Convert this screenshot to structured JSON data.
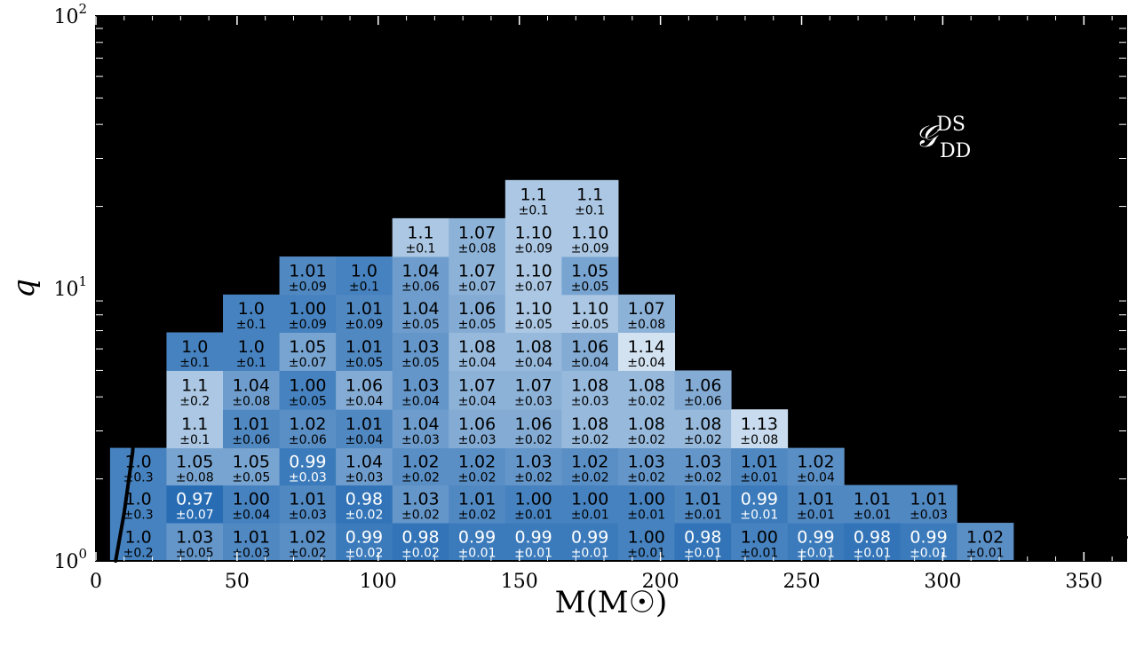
{
  "chart_data": {
    "type": "heatmap",
    "title": "",
    "xlabel": "M(M☉)",
    "ylabel": "q",
    "annotation": {
      "main": "𝒢",
      "sup": "DS",
      "sub": "DD"
    },
    "xlim": [
      0,
      365
    ],
    "ylim": [
      1,
      100
    ],
    "y_scale": "log",
    "x_ticks": [
      "0",
      "50",
      "100",
      "150",
      "200",
      "250",
      "300",
      "350"
    ],
    "y_ticks": [
      {
        "base": "10",
        "exp": "0"
      },
      {
        "base": "10",
        "exp": "1"
      },
      {
        "base": "10",
        "exp": "2"
      }
    ],
    "x_bin_edges": [
      5,
      25,
      45,
      65,
      85,
      105,
      125,
      145,
      165,
      185,
      205,
      225,
      245,
      265,
      285,
      305,
      325,
      345,
      365
    ],
    "y_bin_edges": [
      1,
      1.38,
      1.9,
      2.6,
      3.6,
      5.0,
      6.9,
      9.5,
      13.1,
      18.1,
      25.0,
      34.5,
      47.6
    ],
    "colors": {
      "background": "#000000",
      "cmap_low": "#1e66b0",
      "cmap_high": "#dde9f5"
    },
    "cells": [
      {
        "xi": 0,
        "yi": 0,
        "value": "1.0",
        "err": "±0.2"
      },
      {
        "xi": 1,
        "yi": 0,
        "value": "1.03",
        "err": "±0.05"
      },
      {
        "xi": 2,
        "yi": 0,
        "value": "1.01",
        "err": "±0.03"
      },
      {
        "xi": 3,
        "yi": 0,
        "value": "1.02",
        "err": "±0.02"
      },
      {
        "xi": 4,
        "yi": 0,
        "value": "0.99",
        "err": "±0.02"
      },
      {
        "xi": 5,
        "yi": 0,
        "value": "0.98",
        "err": "±0.02"
      },
      {
        "xi": 6,
        "yi": 0,
        "value": "0.99",
        "err": "±0.01"
      },
      {
        "xi": 7,
        "yi": 0,
        "value": "0.99",
        "err": "±0.01"
      },
      {
        "xi": 8,
        "yi": 0,
        "value": "0.99",
        "err": "±0.01"
      },
      {
        "xi": 9,
        "yi": 0,
        "value": "1.00",
        "err": "±0.01"
      },
      {
        "xi": 10,
        "yi": 0,
        "value": "0.98",
        "err": "±0.01"
      },
      {
        "xi": 11,
        "yi": 0,
        "value": "1.00",
        "err": "±0.01"
      },
      {
        "xi": 12,
        "yi": 0,
        "value": "0.99",
        "err": "±0.01"
      },
      {
        "xi": 13,
        "yi": 0,
        "value": "0.98",
        "err": "±0.01"
      },
      {
        "xi": 14,
        "yi": 0,
        "value": "0.99",
        "err": "±0.01"
      },
      {
        "xi": 15,
        "yi": 0,
        "value": "1.02",
        "err": "±0.01"
      },
      {
        "xi": 0,
        "yi": 1,
        "value": "1.0",
        "err": "±0.3"
      },
      {
        "xi": 1,
        "yi": 1,
        "value": "0.97",
        "err": "±0.07"
      },
      {
        "xi": 2,
        "yi": 1,
        "value": "1.00",
        "err": "±0.04"
      },
      {
        "xi": 3,
        "yi": 1,
        "value": "1.01",
        "err": "±0.03"
      },
      {
        "xi": 4,
        "yi": 1,
        "value": "0.98",
        "err": "±0.02"
      },
      {
        "xi": 5,
        "yi": 1,
        "value": "1.03",
        "err": "±0.02"
      },
      {
        "xi": 6,
        "yi": 1,
        "value": "1.01",
        "err": "±0.02"
      },
      {
        "xi": 7,
        "yi": 1,
        "value": "1.00",
        "err": "±0.01"
      },
      {
        "xi": 8,
        "yi": 1,
        "value": "1.00",
        "err": "±0.01"
      },
      {
        "xi": 9,
        "yi": 1,
        "value": "1.00",
        "err": "±0.01"
      },
      {
        "xi": 10,
        "yi": 1,
        "value": "1.01",
        "err": "±0.01"
      },
      {
        "xi": 11,
        "yi": 1,
        "value": "0.99",
        "err": "±0.01"
      },
      {
        "xi": 12,
        "yi": 1,
        "value": "1.01",
        "err": "±0.01"
      },
      {
        "xi": 13,
        "yi": 1,
        "value": "1.01",
        "err": "±0.01"
      },
      {
        "xi": 14,
        "yi": 1,
        "value": "1.01",
        "err": "±0.03"
      },
      {
        "xi": 0,
        "yi": 2,
        "value": "1.0",
        "err": "±0.3"
      },
      {
        "xi": 1,
        "yi": 2,
        "value": "1.05",
        "err": "±0.08"
      },
      {
        "xi": 2,
        "yi": 2,
        "value": "1.05",
        "err": "±0.05"
      },
      {
        "xi": 3,
        "yi": 2,
        "value": "0.99",
        "err": "±0.03"
      },
      {
        "xi": 4,
        "yi": 2,
        "value": "1.04",
        "err": "±0.03"
      },
      {
        "xi": 5,
        "yi": 2,
        "value": "1.02",
        "err": "±0.02"
      },
      {
        "xi": 6,
        "yi": 2,
        "value": "1.02",
        "err": "±0.02"
      },
      {
        "xi": 7,
        "yi": 2,
        "value": "1.03",
        "err": "±0.02"
      },
      {
        "xi": 8,
        "yi": 2,
        "value": "1.02",
        "err": "±0.02"
      },
      {
        "xi": 9,
        "yi": 2,
        "value": "1.03",
        "err": "±0.02"
      },
      {
        "xi": 10,
        "yi": 2,
        "value": "1.03",
        "err": "±0.02"
      },
      {
        "xi": 11,
        "yi": 2,
        "value": "1.01",
        "err": "±0.01"
      },
      {
        "xi": 12,
        "yi": 2,
        "value": "1.02",
        "err": "±0.04"
      },
      {
        "xi": 1,
        "yi": 3,
        "value": "1.1",
        "err": "±0.1"
      },
      {
        "xi": 2,
        "yi": 3,
        "value": "1.01",
        "err": "±0.06"
      },
      {
        "xi": 3,
        "yi": 3,
        "value": "1.02",
        "err": "±0.06"
      },
      {
        "xi": 4,
        "yi": 3,
        "value": "1.01",
        "err": "±0.04"
      },
      {
        "xi": 5,
        "yi": 3,
        "value": "1.04",
        "err": "±0.03"
      },
      {
        "xi": 6,
        "yi": 3,
        "value": "1.06",
        "err": "±0.03"
      },
      {
        "xi": 7,
        "yi": 3,
        "value": "1.06",
        "err": "±0.02"
      },
      {
        "xi": 8,
        "yi": 3,
        "value": "1.08",
        "err": "±0.02"
      },
      {
        "xi": 9,
        "yi": 3,
        "value": "1.08",
        "err": "±0.02"
      },
      {
        "xi": 10,
        "yi": 3,
        "value": "1.08",
        "err": "±0.02"
      },
      {
        "xi": 11,
        "yi": 3,
        "value": "1.13",
        "err": "±0.08"
      },
      {
        "xi": 1,
        "yi": 4,
        "value": "1.1",
        "err": "±0.2"
      },
      {
        "xi": 2,
        "yi": 4,
        "value": "1.04",
        "err": "±0.08"
      },
      {
        "xi": 3,
        "yi": 4,
        "value": "1.00",
        "err": "±0.05"
      },
      {
        "xi": 4,
        "yi": 4,
        "value": "1.06",
        "err": "±0.04"
      },
      {
        "xi": 5,
        "yi": 4,
        "value": "1.03",
        "err": "±0.04"
      },
      {
        "xi": 6,
        "yi": 4,
        "value": "1.07",
        "err": "±0.04"
      },
      {
        "xi": 7,
        "yi": 4,
        "value": "1.07",
        "err": "±0.03"
      },
      {
        "xi": 8,
        "yi": 4,
        "value": "1.08",
        "err": "±0.03"
      },
      {
        "xi": 9,
        "yi": 4,
        "value": "1.08",
        "err": "±0.02"
      },
      {
        "xi": 10,
        "yi": 4,
        "value": "1.06",
        "err": "±0.06"
      },
      {
        "xi": 1,
        "yi": 5,
        "value": "1.0",
        "err": "±0.1"
      },
      {
        "xi": 2,
        "yi": 5,
        "value": "1.0",
        "err": "±0.1"
      },
      {
        "xi": 3,
        "yi": 5,
        "value": "1.05",
        "err": "±0.07"
      },
      {
        "xi": 4,
        "yi": 5,
        "value": "1.01",
        "err": "±0.05"
      },
      {
        "xi": 5,
        "yi": 5,
        "value": "1.03",
        "err": "±0.05"
      },
      {
        "xi": 6,
        "yi": 5,
        "value": "1.08",
        "err": "±0.04"
      },
      {
        "xi": 7,
        "yi": 5,
        "value": "1.08",
        "err": "±0.04"
      },
      {
        "xi": 8,
        "yi": 5,
        "value": "1.06",
        "err": "±0.04"
      },
      {
        "xi": 9,
        "yi": 5,
        "value": "1.14",
        "err": "±0.04"
      },
      {
        "xi": 2,
        "yi": 6,
        "value": "1.0",
        "err": "±0.1"
      },
      {
        "xi": 3,
        "yi": 6,
        "value": "1.00",
        "err": "±0.09"
      },
      {
        "xi": 4,
        "yi": 6,
        "value": "1.01",
        "err": "±0.09"
      },
      {
        "xi": 5,
        "yi": 6,
        "value": "1.04",
        "err": "±0.05"
      },
      {
        "xi": 6,
        "yi": 6,
        "value": "1.06",
        "err": "±0.05"
      },
      {
        "xi": 7,
        "yi": 6,
        "value": "1.10",
        "err": "±0.05"
      },
      {
        "xi": 8,
        "yi": 6,
        "value": "1.10",
        "err": "±0.05"
      },
      {
        "xi": 9,
        "yi": 6,
        "value": "1.07",
        "err": "±0.08"
      },
      {
        "xi": 3,
        "yi": 7,
        "value": "1.01",
        "err": "±0.09"
      },
      {
        "xi": 4,
        "yi": 7,
        "value": "1.0",
        "err": "±0.1"
      },
      {
        "xi": 5,
        "yi": 7,
        "value": "1.04",
        "err": "±0.06"
      },
      {
        "xi": 6,
        "yi": 7,
        "value": "1.07",
        "err": "±0.07"
      },
      {
        "xi": 7,
        "yi": 7,
        "value": "1.10",
        "err": "±0.07"
      },
      {
        "xi": 8,
        "yi": 7,
        "value": "1.05",
        "err": "±0.05"
      },
      {
        "xi": 5,
        "yi": 8,
        "value": "1.1",
        "err": "±0.1"
      },
      {
        "xi": 6,
        "yi": 8,
        "value": "1.07",
        "err": "±0.08"
      },
      {
        "xi": 7,
        "yi": 8,
        "value": "1.10",
        "err": "±0.09"
      },
      {
        "xi": 8,
        "yi": 8,
        "value": "1.10",
        "err": "±0.09"
      },
      {
        "xi": 7,
        "yi": 9,
        "value": "1.1",
        "err": "±0.1"
      },
      {
        "xi": 8,
        "yi": 9,
        "value": "1.1",
        "err": "±0.1"
      }
    ],
    "boundary_curves": [
      [
        [
          7,
          1.0
        ],
        [
          10,
          1.5
        ],
        [
          13,
          2.5
        ],
        [
          14,
          3.6
        ]
      ],
      [
        [
          30,
          8.0
        ],
        [
          35,
          9.5
        ],
        [
          43,
          12.0
        ],
        [
          55,
          15.2
        ],
        [
          70,
          20.0
        ],
        [
          90,
          26.0
        ],
        [
          105,
          30.5
        ],
        [
          125,
          36.0
        ],
        [
          140,
          40.0
        ],
        [
          160,
          46.0
        ],
        [
          180,
          52.0
        ],
        [
          203,
          58.0
        ]
      ],
      [
        [
          200,
          62.0
        ],
        [
          203,
          45.0
        ],
        [
          206,
          28.0
        ],
        [
          210,
          20.0
        ],
        [
          215,
          14.0
        ],
        [
          222,
          10.0
        ],
        [
          232,
          7.2
        ],
        [
          245,
          5.5
        ],
        [
          262,
          4.2
        ],
        [
          282,
          3.1
        ],
        [
          305,
          2.3
        ],
        [
          330,
          1.7
        ],
        [
          350,
          1.4
        ],
        [
          365,
          1.22
        ]
      ]
    ]
  }
}
